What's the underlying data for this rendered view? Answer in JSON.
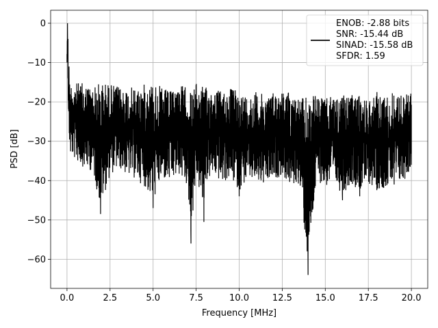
{
  "chart_data": {
    "type": "line",
    "title": "",
    "xlabel": "Frequency [MHz]",
    "ylabel": "PSD [dB]",
    "xlim": [
      -0.95,
      20.95
    ],
    "ylim": [
      -67.4,
      3.3
    ],
    "xticks": [
      0.0,
      2.5,
      5.0,
      7.5,
      10.0,
      12.5,
      15.0,
      17.5,
      20.0
    ],
    "xtick_labels": [
      "0.0",
      "2.5",
      "5.0",
      "7.5",
      "10.0",
      "12.5",
      "15.0",
      "17.5",
      "20.0"
    ],
    "yticks": [
      0,
      -10,
      -20,
      -30,
      -40,
      -50,
      -60
    ],
    "ytick_labels": [
      "0",
      "−10",
      "−20",
      "−30",
      "−40",
      "−50",
      "−60"
    ],
    "grid": true,
    "legend_position": "top-right",
    "series": [
      {
        "name": "ENOB: -2.88 bits\nSNR: -15.44 dB\nSINAD: -15.58 dB\nSFDR: 1.59",
        "color": "#000000",
        "x": [
          0.0,
          0.03,
          0.06,
          0.09,
          0.12,
          0.16,
          0.2,
          0.25,
          0.3,
          0.5,
          1.0,
          1.5,
          1.95,
          2.5,
          3.0,
          3.5,
          4.0,
          4.5,
          5.0,
          5.5,
          6.0,
          6.5,
          7.0,
          7.2,
          7.5,
          7.95,
          8.0,
          8.5,
          9.0,
          9.5,
          10.0,
          10.5,
          11.0,
          11.5,
          12.0,
          12.5,
          13.0,
          13.5,
          14.0,
          14.5,
          15.0,
          15.5,
          16.0,
          16.5,
          17.0,
          17.5,
          18.0,
          18.5,
          19.0,
          19.5,
          20.0
        ],
        "y": [
          -10,
          0,
          -4,
          -17,
          -11,
          -19,
          -28,
          -25,
          -30,
          -27,
          -33,
          -30,
          -48.5,
          -31,
          -32,
          -29,
          -33,
          -30,
          -47,
          -33,
          -30,
          -34,
          -37,
          -56,
          -35,
          -50.5,
          -36,
          -32,
          -35,
          -34,
          -44,
          -33,
          -37,
          -35,
          -38,
          -33,
          -37,
          -36,
          -64,
          -32,
          -37,
          -34,
          -45,
          -36,
          -44,
          -33,
          -42,
          -35,
          -41,
          -37,
          -36
        ],
        "y_top_envelope": [
          -3,
          0,
          -6,
          -15,
          -12,
          -14,
          -15,
          -14,
          -14,
          -14,
          -14,
          -15,
          -13,
          -14,
          -15,
          -15,
          -15,
          -14,
          -13,
          -15,
          -16,
          -14,
          -15,
          -15,
          -14,
          -14,
          -15,
          -15,
          -16,
          -15,
          -16,
          -17,
          -16,
          -17,
          -16,
          -16,
          -16,
          -18,
          -16,
          -17,
          -18,
          -17,
          -17,
          -17,
          -17,
          -18,
          -16,
          -17,
          -16,
          -17,
          -16
        ],
        "y_bottom_envelope": [
          -17,
          -4,
          -18,
          -29,
          -30,
          -33,
          -35,
          -34,
          -35,
          -36,
          -38,
          -39,
          -48.5,
          -40,
          -38,
          -40,
          -41,
          -43,
          -47,
          -41,
          -42,
          -40,
          -43,
          -56,
          -40,
          -50.5,
          -42,
          -40,
          -42,
          -41,
          -44,
          -41,
          -42,
          -43,
          -41,
          -40,
          -43,
          -42,
          -64,
          -41,
          -43,
          -42,
          -45,
          -42,
          -44,
          -42,
          -44,
          -43,
          -42,
          -42,
          -38
        ]
      }
    ]
  }
}
